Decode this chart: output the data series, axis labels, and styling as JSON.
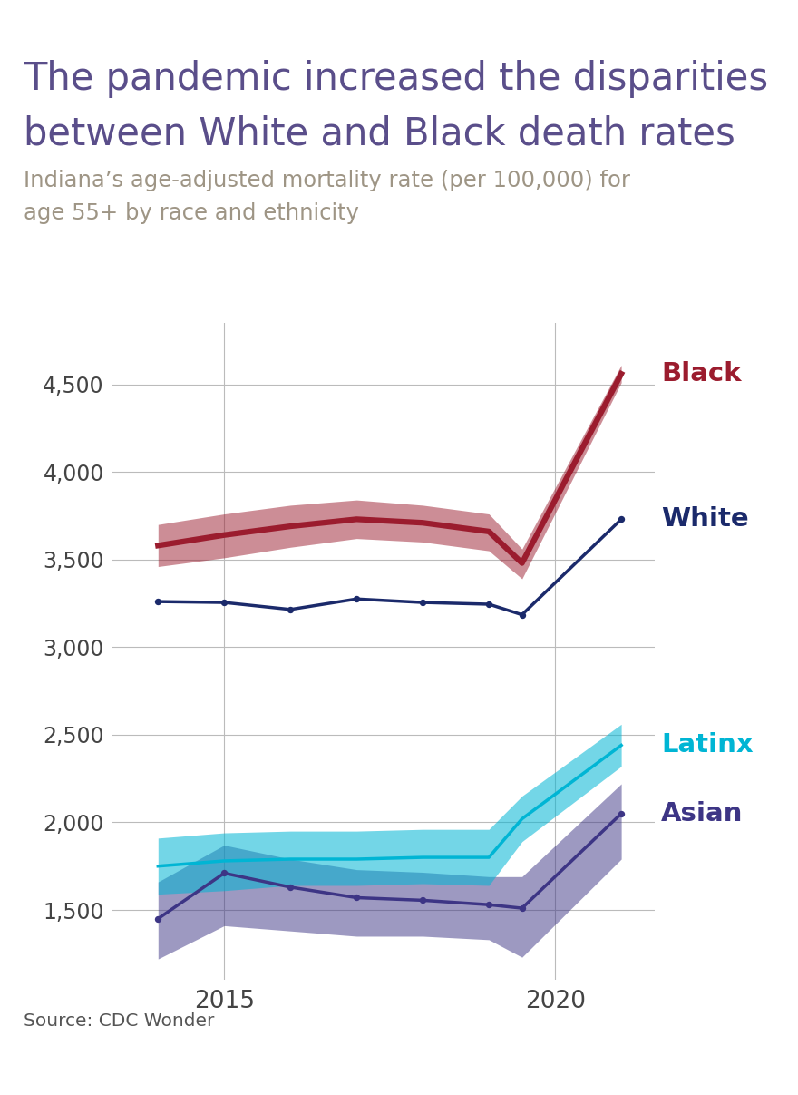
{
  "title_line1": "The pandemic increased the disparities",
  "title_line2": "between White and Black death rates",
  "subtitle_line1": "Indiana’s age-adjusted mortality rate (per 100,000) for",
  "subtitle_line2": "age 55+ by race and ethnicity",
  "title_color": "#5a4e8a",
  "subtitle_color": "#9e9585",
  "source_text": "Source: CDC Wonder",
  "top_bar_color": "#5a4e8a",
  "background_color": "#ffffff",
  "ylim": [
    1100,
    4850
  ],
  "yticks": [
    1500,
    2000,
    2500,
    3000,
    3500,
    4000,
    4500
  ],
  "xtick_positions": [
    2015,
    2020
  ],
  "xtick_labels": [
    "2015",
    "2020"
  ],
  "black_x": [
    2014,
    2015,
    2016,
    2017,
    2018,
    2019,
    2019.5,
    2021
  ],
  "black_line_y": [
    3580,
    3640,
    3690,
    3730,
    3710,
    3660,
    3480,
    4560
  ],
  "black_band_upper": [
    3700,
    3760,
    3810,
    3840,
    3810,
    3760,
    3560,
    4610
  ],
  "black_band_lower": [
    3460,
    3510,
    3570,
    3620,
    3600,
    3550,
    3390,
    4510
  ],
  "black_color": "#9b1c2e",
  "black_label": "Black",
  "white_x": [
    2014,
    2015,
    2016,
    2017,
    2018,
    2019,
    2019.5,
    2021
  ],
  "white_y": [
    3260,
    3255,
    3215,
    3275,
    3255,
    3245,
    3185,
    3730
  ],
  "white_color": "#1b2a6b",
  "white_label": "White",
  "latinx_x": [
    2014,
    2015,
    2016,
    2017,
    2018,
    2019,
    2019.5,
    2021
  ],
  "latinx_line_y": [
    1750,
    1780,
    1790,
    1790,
    1800,
    1800,
    2020,
    2440
  ],
  "latinx_band_upper": [
    1910,
    1940,
    1950,
    1950,
    1960,
    1960,
    2150,
    2560
  ],
  "latinx_band_lower": [
    1590,
    1610,
    1640,
    1640,
    1650,
    1640,
    1890,
    2320
  ],
  "latinx_color": "#00b5d4",
  "latinx_label": "Latinx",
  "asian_x": [
    2014,
    2015,
    2016,
    2017,
    2018,
    2019,
    2019.5,
    2021
  ],
  "asian_line_y": [
    1450,
    1710,
    1630,
    1570,
    1555,
    1530,
    1510,
    2050
  ],
  "asian_band_upper": [
    1660,
    1870,
    1790,
    1730,
    1715,
    1690,
    1690,
    2220
  ],
  "asian_band_lower": [
    1220,
    1410,
    1380,
    1350,
    1350,
    1330,
    1230,
    1790
  ],
  "asian_color": "#3d3585",
  "asian_label": "Asian"
}
